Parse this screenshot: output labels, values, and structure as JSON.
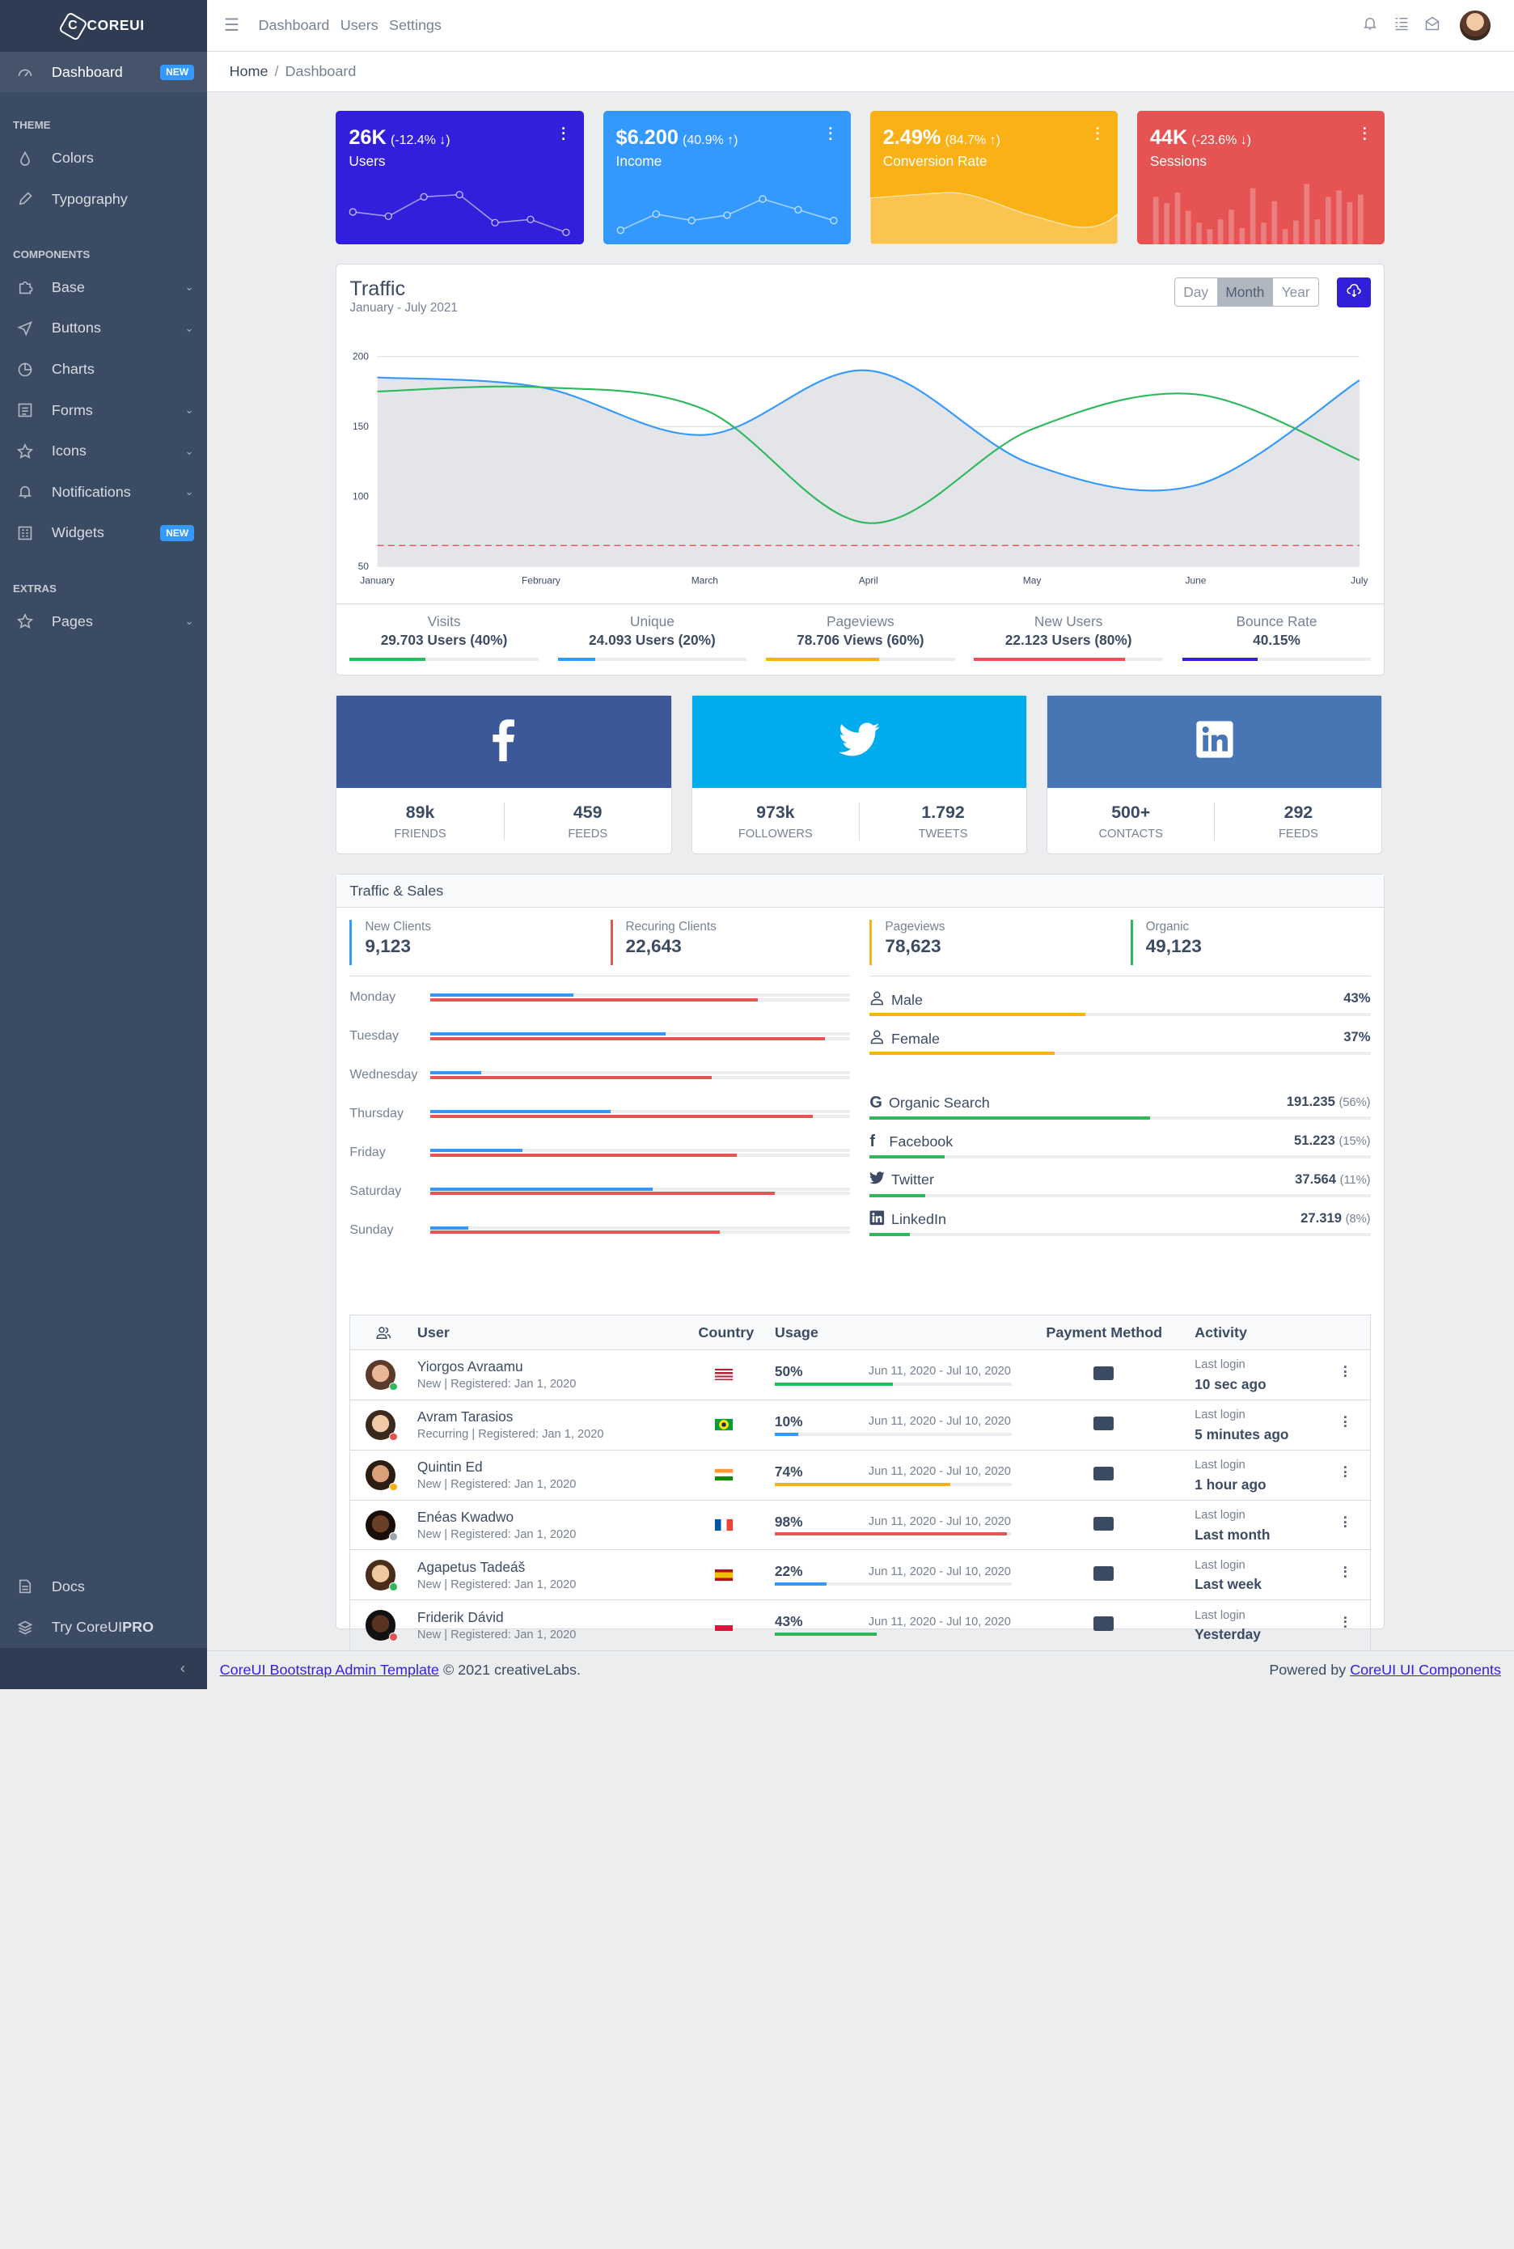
{
  "brand": {
    "name": "COREUI"
  },
  "sidebar": {
    "dashboard": {
      "label": "Dashboard",
      "badge": "NEW"
    },
    "theme_title": "THEME",
    "theme_items": [
      {
        "label": "Colors"
      },
      {
        "label": "Typography"
      }
    ],
    "components_title": "COMPONENTS",
    "component_items": [
      {
        "label": "Base"
      },
      {
        "label": "Buttons"
      },
      {
        "label": "Charts"
      },
      {
        "label": "Forms"
      },
      {
        "label": "Icons"
      },
      {
        "label": "Notifications"
      },
      {
        "label": "Widgets",
        "badge": "NEW"
      }
    ],
    "extras_title": "EXTRAS",
    "extras_items": [
      {
        "label": "Pages"
      }
    ],
    "bottom_items": [
      {
        "label": "Docs"
      },
      {
        "label": "Try CoreUI",
        "bold": "PRO"
      }
    ]
  },
  "header": {
    "nav": [
      "Dashboard",
      "Users",
      "Settings"
    ]
  },
  "breadcrumb": {
    "home": "Home",
    "separator": "/",
    "current": "Dashboard"
  },
  "widgets": [
    {
      "value": "26K",
      "change": "(-12.4% ↓)",
      "label": "Users",
      "color": "#321fdb"
    },
    {
      "value": "$6.200",
      "change": "(40.9% ↑)",
      "label": "Income",
      "color": "#39f"
    },
    {
      "value": "2.49%",
      "change": "(84.7% ↑)",
      "label": "Conversion Rate",
      "color": "#f9b115"
    },
    {
      "value": "44K",
      "change": "(-23.6% ↓)",
      "label": "Sessions",
      "color": "#e55353"
    }
  ],
  "traffic": {
    "title": "Traffic",
    "subtitle": "January - July 2021",
    "range_buttons": [
      "Day",
      "Month",
      "Year"
    ],
    "stats": [
      {
        "label": "Visits",
        "value": "29.703 Users (40%)",
        "progress": 40,
        "color": "#2eb85c"
      },
      {
        "label": "Unique",
        "value": "24.093 Users (20%)",
        "progress": 20,
        "color": "#39f"
      },
      {
        "label": "Pageviews",
        "value": "78.706 Views (60%)",
        "progress": 60,
        "color": "#f9b115"
      },
      {
        "label": "New Users",
        "value": "22.123 Users (80%)",
        "progress": 80,
        "color": "#e55353"
      },
      {
        "label": "Bounce Rate",
        "value": "40.15%",
        "progress": 40,
        "color": "#321fdb"
      }
    ]
  },
  "chart_data": {
    "type": "line",
    "x": [
      "January",
      "February",
      "March",
      "April",
      "May",
      "June",
      "July"
    ],
    "ylim": [
      50,
      200
    ],
    "yticks": [
      50,
      100,
      150,
      200
    ],
    "series": [
      {
        "color": "#39f",
        "fill": "#e4e5e8",
        "values": [
          185,
          178,
          144,
          190,
          123,
          108,
          183
        ]
      },
      {
        "color": "#2eb85c",
        "values": [
          175,
          178,
          162,
          81,
          148,
          173,
          126
        ]
      },
      {
        "color": "#e55353",
        "dashed": true,
        "values": [
          65,
          65,
          65,
          65,
          65,
          65,
          65
        ]
      }
    ]
  },
  "social": [
    {
      "network": "facebook",
      "color": "#3b5998",
      "stats": [
        {
          "value": "89k",
          "label": "FRIENDS"
        },
        {
          "value": "459",
          "label": "FEEDS"
        }
      ]
    },
    {
      "network": "twitter",
      "color": "#00aced",
      "stats": [
        {
          "value": "973k",
          "label": "FOLLOWERS"
        },
        {
          "value": "1.792",
          "label": "TWEETS"
        }
      ]
    },
    {
      "network": "linkedin",
      "color": "#4875b4",
      "stats": [
        {
          "value": "500+",
          "label": "CONTACTS"
        },
        {
          "value": "292",
          "label": "FEEDS"
        }
      ]
    }
  ],
  "traffic_sales": {
    "title": "Traffic & Sales",
    "client_stats": [
      {
        "label": "New Clients",
        "value": "9,123",
        "color": "#39f"
      },
      {
        "label": "Recuring Clients",
        "value": "22,643",
        "color": "#e55353"
      },
      {
        "label": "Pageviews",
        "value": "78,623",
        "color": "#f9b115"
      },
      {
        "label": "Organic",
        "value": "49,123",
        "color": "#2eb85c"
      }
    ],
    "days": [
      {
        "day": "Monday",
        "new": 34,
        "recurring": 78
      },
      {
        "day": "Tuesday",
        "new": 56,
        "recurring": 94
      },
      {
        "day": "Wednesday",
        "new": 12,
        "recurring": 67
      },
      {
        "day": "Thursday",
        "new": 43,
        "recurring": 91
      },
      {
        "day": "Friday",
        "new": 22,
        "recurring": 73
      },
      {
        "day": "Saturday",
        "new": 53,
        "recurring": 82
      },
      {
        "day": "Sunday",
        "new": 9,
        "recurring": 69
      }
    ],
    "gender": [
      {
        "label": "Male",
        "value": "43%",
        "progress": 43
      },
      {
        "label": "Female",
        "value": "37%",
        "progress": 37
      }
    ],
    "sources": [
      {
        "label": "Organic Search",
        "value": "191.235",
        "pct": "(56%)",
        "progress": 56
      },
      {
        "label": "Facebook",
        "value": "51.223",
        "pct": "(15%)",
        "progress": 15
      },
      {
        "label": "Twitter",
        "value": "37.564",
        "pct": "(11%)",
        "progress": 11
      },
      {
        "label": "LinkedIn",
        "value": "27.319",
        "pct": "(8%)",
        "progress": 8
      }
    ]
  },
  "users_table": {
    "headers": {
      "user": "User",
      "country": "Country",
      "usage": "Usage",
      "payment": "Payment Method",
      "activity": "Activity"
    },
    "rows": [
      {
        "name": "Yiorgos Avraamu",
        "sub": "New | Registered: Jan 1, 2020",
        "status": "#2eb85c",
        "usage": "50%",
        "progress": 50,
        "color": "#2eb85c",
        "period": "Jun 11, 2020 - Jul 10, 2020",
        "activity_label": "Last login",
        "activity": "10 sec ago",
        "flag": "us",
        "pay": "MC"
      },
      {
        "name": "Avram Tarasios",
        "sub": "Recurring | Registered: Jan 1, 2020",
        "status": "#e55353",
        "usage": "10%",
        "progress": 10,
        "color": "#39f",
        "period": "Jun 11, 2020 - Jul 10, 2020",
        "activity_label": "Last login",
        "activity": "5 minutes ago",
        "flag": "br",
        "pay": "VISA"
      },
      {
        "name": "Quintin Ed",
        "sub": "New | Registered: Jan 1, 2020",
        "status": "#f9b115",
        "usage": "74%",
        "progress": 74,
        "color": "#f9b115",
        "period": "Jun 11, 2020 - Jul 10, 2020",
        "activity_label": "Last login",
        "activity": "1 hour ago",
        "flag": "in",
        "pay": "stripe"
      },
      {
        "name": "Enéas Kwadwo",
        "sub": "New | Registered: Jan 1, 2020",
        "status": "#9da5b1",
        "usage": "98%",
        "progress": 98,
        "color": "#e55353",
        "period": "Jun 11, 2020 - Jul 10, 2020",
        "activity_label": "Last login",
        "activity": "Last month",
        "flag": "fr",
        "pay": "PayPal"
      },
      {
        "name": "Agapetus Tadeáš",
        "sub": "New | Registered: Jan 1, 2020",
        "status": "#2eb85c",
        "usage": "22%",
        "progress": 22,
        "color": "#39f",
        "period": "Jun 11, 2020 - Jul 10, 2020",
        "activity_label": "Last login",
        "activity": "Last week",
        "flag": "es",
        "pay": "Pay"
      },
      {
        "name": "Friderik Dávid",
        "sub": "New | Registered: Jan 1, 2020",
        "status": "#e55353",
        "usage": "43%",
        "progress": 43,
        "color": "#2eb85c",
        "period": "Jun 11, 2020 - Jul 10, 2020",
        "activity_label": "Last login",
        "activity": "Yesterday",
        "flag": "pl",
        "pay": "AMEX"
      }
    ]
  },
  "footer": {
    "left_link": "CoreUI Bootstrap Admin Template",
    "left_text": "© 2021 creativeLabs.",
    "right_text": "Powered by",
    "right_link": "CoreUI UI Components"
  }
}
